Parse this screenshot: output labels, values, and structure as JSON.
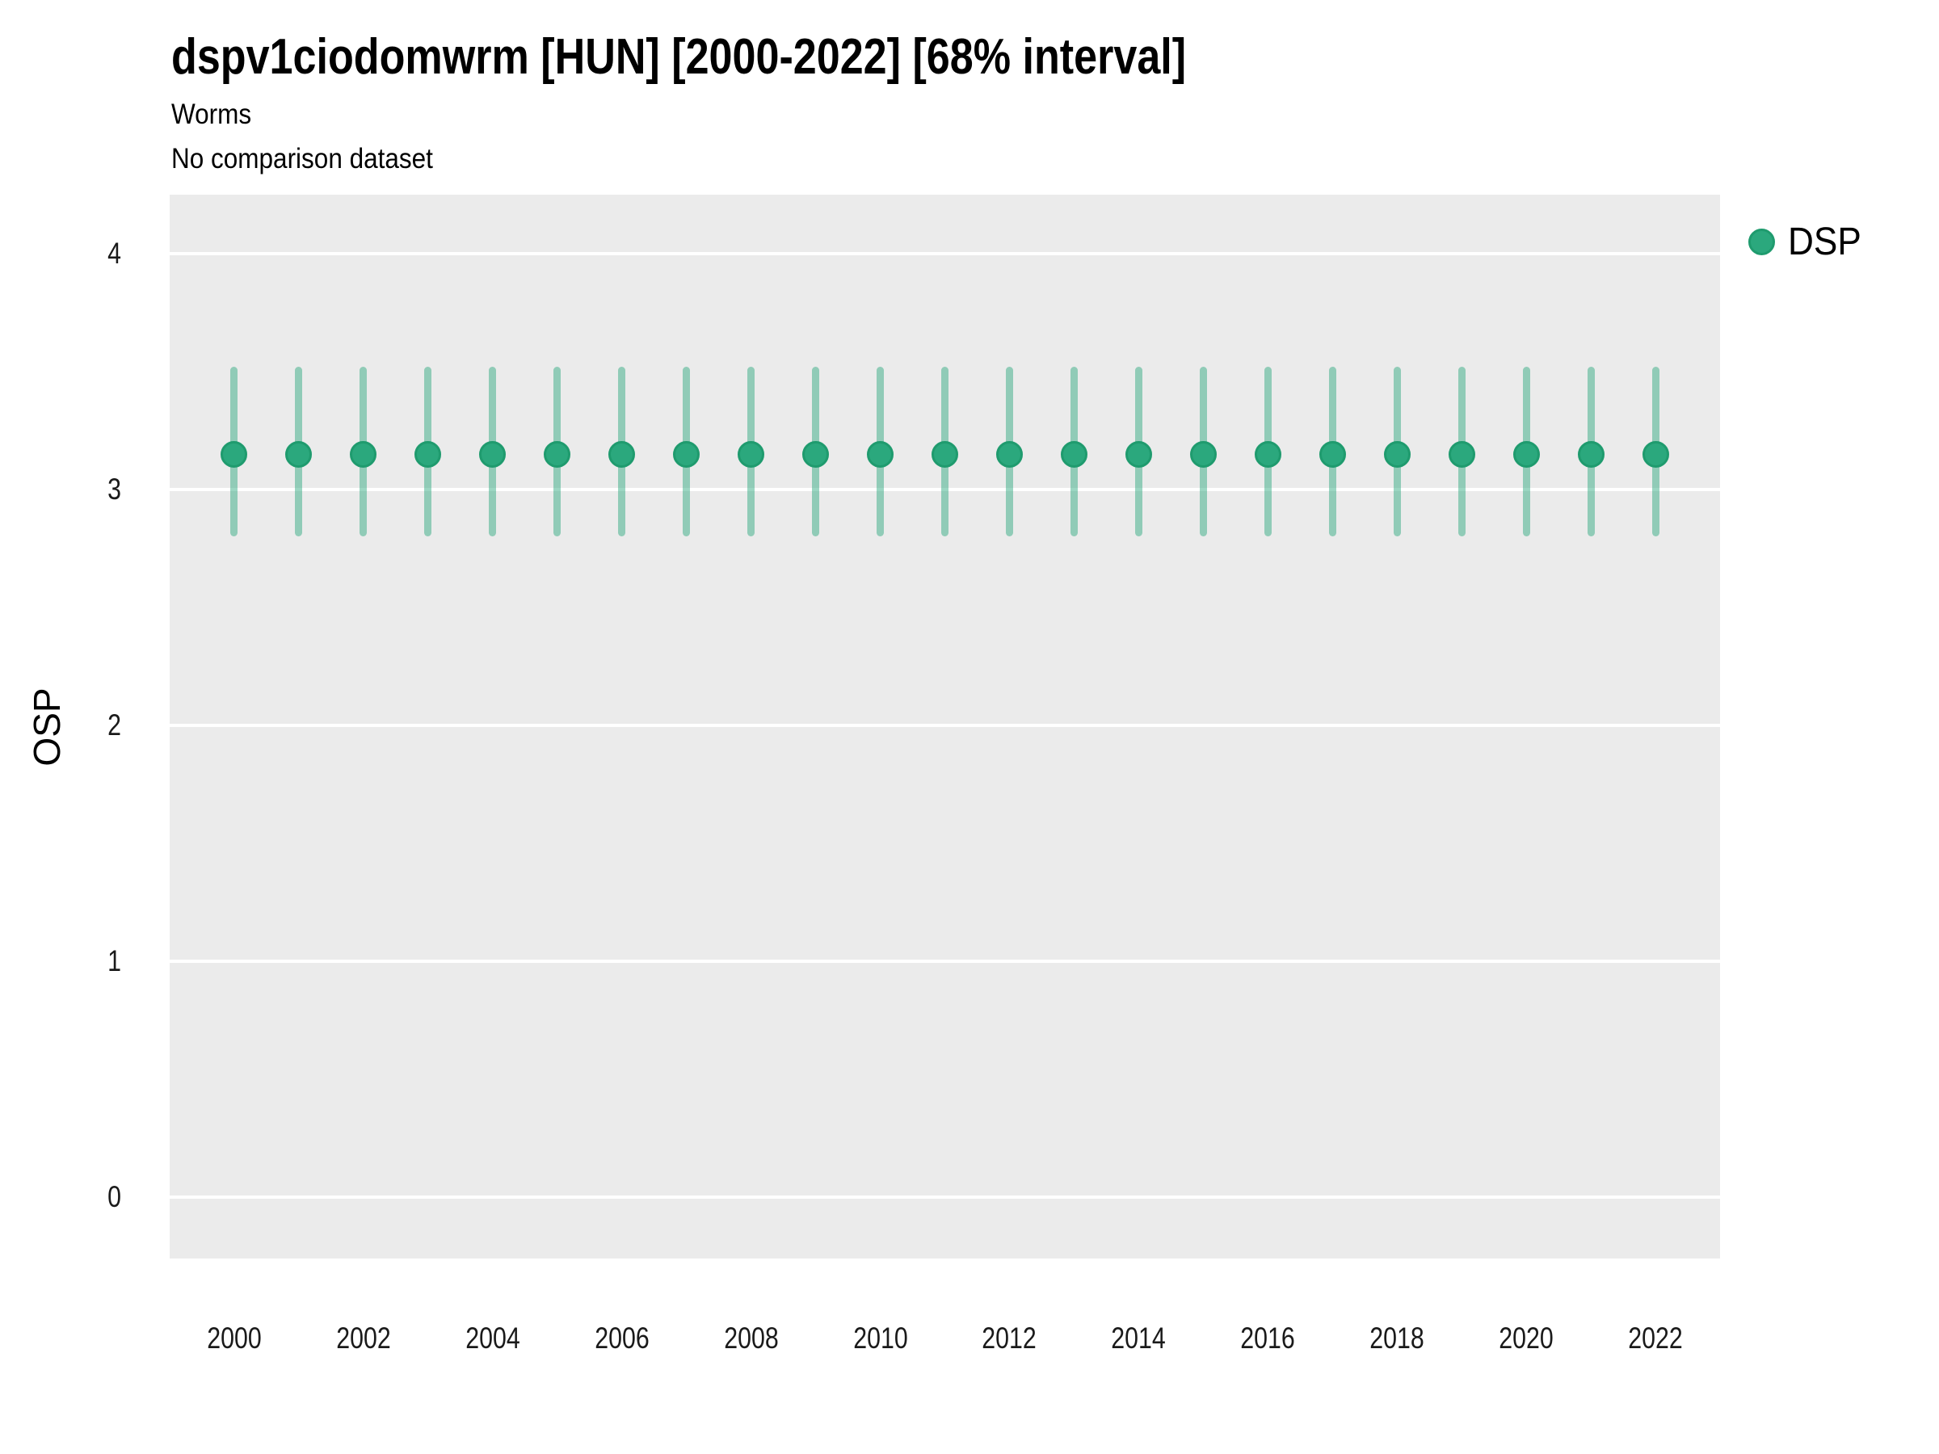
{
  "title": "dspv1ciodomwrm [HUN] [2000-2022] [68% interval]",
  "subtitle": "Worms",
  "comparison_note": "No comparison dataset",
  "y_axis": {
    "label": "OSP",
    "tick_labels": [
      "0",
      "1",
      "2",
      "3",
      "4"
    ]
  },
  "x_axis": {
    "tick_labels": [
      "2000",
      "2002",
      "2004",
      "2006",
      "2008",
      "2010",
      "2012",
      "2014",
      "2016",
      "2018",
      "2020",
      "2022"
    ]
  },
  "legend": {
    "position": "right",
    "items": [
      {
        "label": "DSP",
        "color": "#2BA87D"
      }
    ]
  },
  "colors": {
    "point_fill": "#2BA87D",
    "point_stroke": "#1F9B6E",
    "errorbar_color": "#2BA87D",
    "errorbar_opacity": 0.47,
    "panel_bg": "#EBEBEB",
    "gridline": "#FFFFFF",
    "title_text": "#000000",
    "tick_text": "#1A1A1A"
  },
  "chart_data": {
    "type": "scatter",
    "mark": "pointrange",
    "title": "dspv1ciodomwrm [HUN] [2000-2022] [68% interval]",
    "subtitle": "Worms",
    "note": "No comparison dataset",
    "xlabel": "",
    "ylabel": "OSP",
    "interval": "68%",
    "x": [
      2000,
      2001,
      2002,
      2003,
      2004,
      2005,
      2006,
      2007,
      2008,
      2009,
      2010,
      2011,
      2012,
      2013,
      2014,
      2015,
      2016,
      2017,
      2018,
      2019,
      2020,
      2021,
      2022
    ],
    "series": [
      {
        "name": "DSP",
        "values": [
          3.15,
          3.15,
          3.15,
          3.15,
          3.15,
          3.15,
          3.15,
          3.15,
          3.15,
          3.15,
          3.15,
          3.15,
          3.15,
          3.15,
          3.15,
          3.15,
          3.15,
          3.15,
          3.15,
          3.15,
          3.15,
          3.15,
          3.15
        ],
        "lower": [
          2.8,
          2.8,
          2.8,
          2.8,
          2.8,
          2.8,
          2.8,
          2.8,
          2.8,
          2.8,
          2.8,
          2.8,
          2.8,
          2.8,
          2.8,
          2.8,
          2.8,
          2.8,
          2.8,
          2.8,
          2.8,
          2.8,
          2.8
        ],
        "upper": [
          3.52,
          3.52,
          3.52,
          3.52,
          3.52,
          3.52,
          3.52,
          3.52,
          3.52,
          3.52,
          3.52,
          3.52,
          3.52,
          3.52,
          3.52,
          3.52,
          3.52,
          3.52,
          3.52,
          3.52,
          3.52,
          3.52,
          3.52
        ]
      }
    ],
    "yticks": [
      0,
      1,
      2,
      3,
      4
    ],
    "xticks": [
      2000,
      2002,
      2004,
      2006,
      2008,
      2010,
      2012,
      2014,
      2016,
      2018,
      2020,
      2022
    ],
    "ylim": [
      -0.26,
      4.25
    ],
    "xlim": [
      1999,
      2023
    ],
    "grid": "major-horizontal-only",
    "legend_position": "right"
  }
}
